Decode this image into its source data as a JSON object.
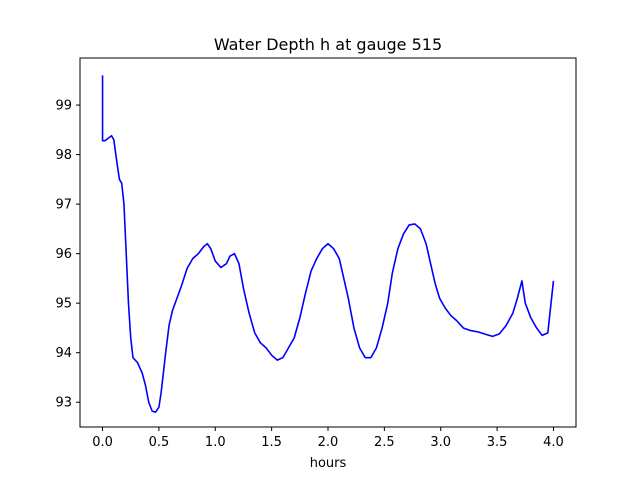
{
  "chart_data": {
    "type": "line",
    "title": "Water Depth h at gauge 515",
    "xlabel": "hours",
    "ylabel": "",
    "xlim": [
      -0.2,
      4.2
    ],
    "ylim": [
      92.5,
      99.95
    ],
    "xticks": [
      0.0,
      0.5,
      1.0,
      1.5,
      2.0,
      2.5,
      3.0,
      3.5,
      4.0
    ],
    "xtick_labels": [
      "0.0",
      "0.5",
      "1.0",
      "1.5",
      "2.0",
      "2.5",
      "3.0",
      "3.5",
      "4.0"
    ],
    "yticks": [
      93,
      94,
      95,
      96,
      97,
      98,
      99
    ],
    "ytick_labels": [
      "93",
      "94",
      "95",
      "96",
      "97",
      "98",
      "99"
    ],
    "grid": false,
    "series": [
      {
        "color": "#0000ff",
        "x": [
          0.0,
          0.0,
          0.0,
          0.02,
          0.05,
          0.08,
          0.1,
          0.13,
          0.15,
          0.17,
          0.19,
          0.21,
          0.23,
          0.25,
          0.27,
          0.29,
          0.31,
          0.33,
          0.35,
          0.38,
          0.41,
          0.44,
          0.47,
          0.5,
          0.52,
          0.54,
          0.56,
          0.59,
          0.62,
          0.66,
          0.7,
          0.75,
          0.8,
          0.85,
          0.9,
          0.93,
          0.96,
          1.0,
          1.05,
          1.1,
          1.13,
          1.17,
          1.21,
          1.25,
          1.3,
          1.35,
          1.4,
          1.45,
          1.5,
          1.55,
          1.6,
          1.65,
          1.7,
          1.75,
          1.8,
          1.85,
          1.9,
          1.95,
          2.0,
          2.05,
          2.1,
          2.13,
          2.18,
          2.23,
          2.28,
          2.33,
          2.38,
          2.43,
          2.48,
          2.53,
          2.57,
          2.62,
          2.67,
          2.72,
          2.77,
          2.82,
          2.87,
          2.92,
          2.95,
          2.99,
          3.04,
          3.09,
          3.14,
          3.2,
          3.26,
          3.33,
          3.4,
          3.46,
          3.52,
          3.58,
          3.64,
          3.68,
          3.72,
          3.75,
          3.8,
          3.85,
          3.9,
          3.95,
          4.0
        ],
        "y": [
          99.6,
          98.3,
          98.28,
          98.28,
          98.33,
          98.38,
          98.3,
          97.8,
          97.5,
          97.42,
          97.0,
          96.0,
          95.0,
          94.3,
          93.9,
          93.85,
          93.8,
          93.7,
          93.6,
          93.35,
          93.0,
          92.82,
          92.8,
          92.9,
          93.2,
          93.6,
          94.0,
          94.55,
          94.85,
          95.1,
          95.35,
          95.7,
          95.9,
          96.0,
          96.15,
          96.2,
          96.1,
          95.85,
          95.72,
          95.8,
          95.95,
          96.0,
          95.8,
          95.3,
          94.8,
          94.4,
          94.2,
          94.1,
          93.95,
          93.85,
          93.9,
          94.1,
          94.3,
          94.7,
          95.2,
          95.65,
          95.9,
          96.1,
          96.2,
          96.1,
          95.9,
          95.6,
          95.1,
          94.5,
          94.1,
          93.9,
          93.9,
          94.1,
          94.5,
          95.0,
          95.6,
          96.1,
          96.4,
          96.58,
          96.6,
          96.5,
          96.2,
          95.7,
          95.4,
          95.1,
          94.9,
          94.75,
          94.65,
          94.5,
          94.45,
          94.42,
          94.37,
          94.33,
          94.38,
          94.55,
          94.8,
          95.1,
          95.45,
          95.0,
          94.7,
          94.5,
          94.35,
          94.4,
          95.45
        ]
      }
    ]
  }
}
